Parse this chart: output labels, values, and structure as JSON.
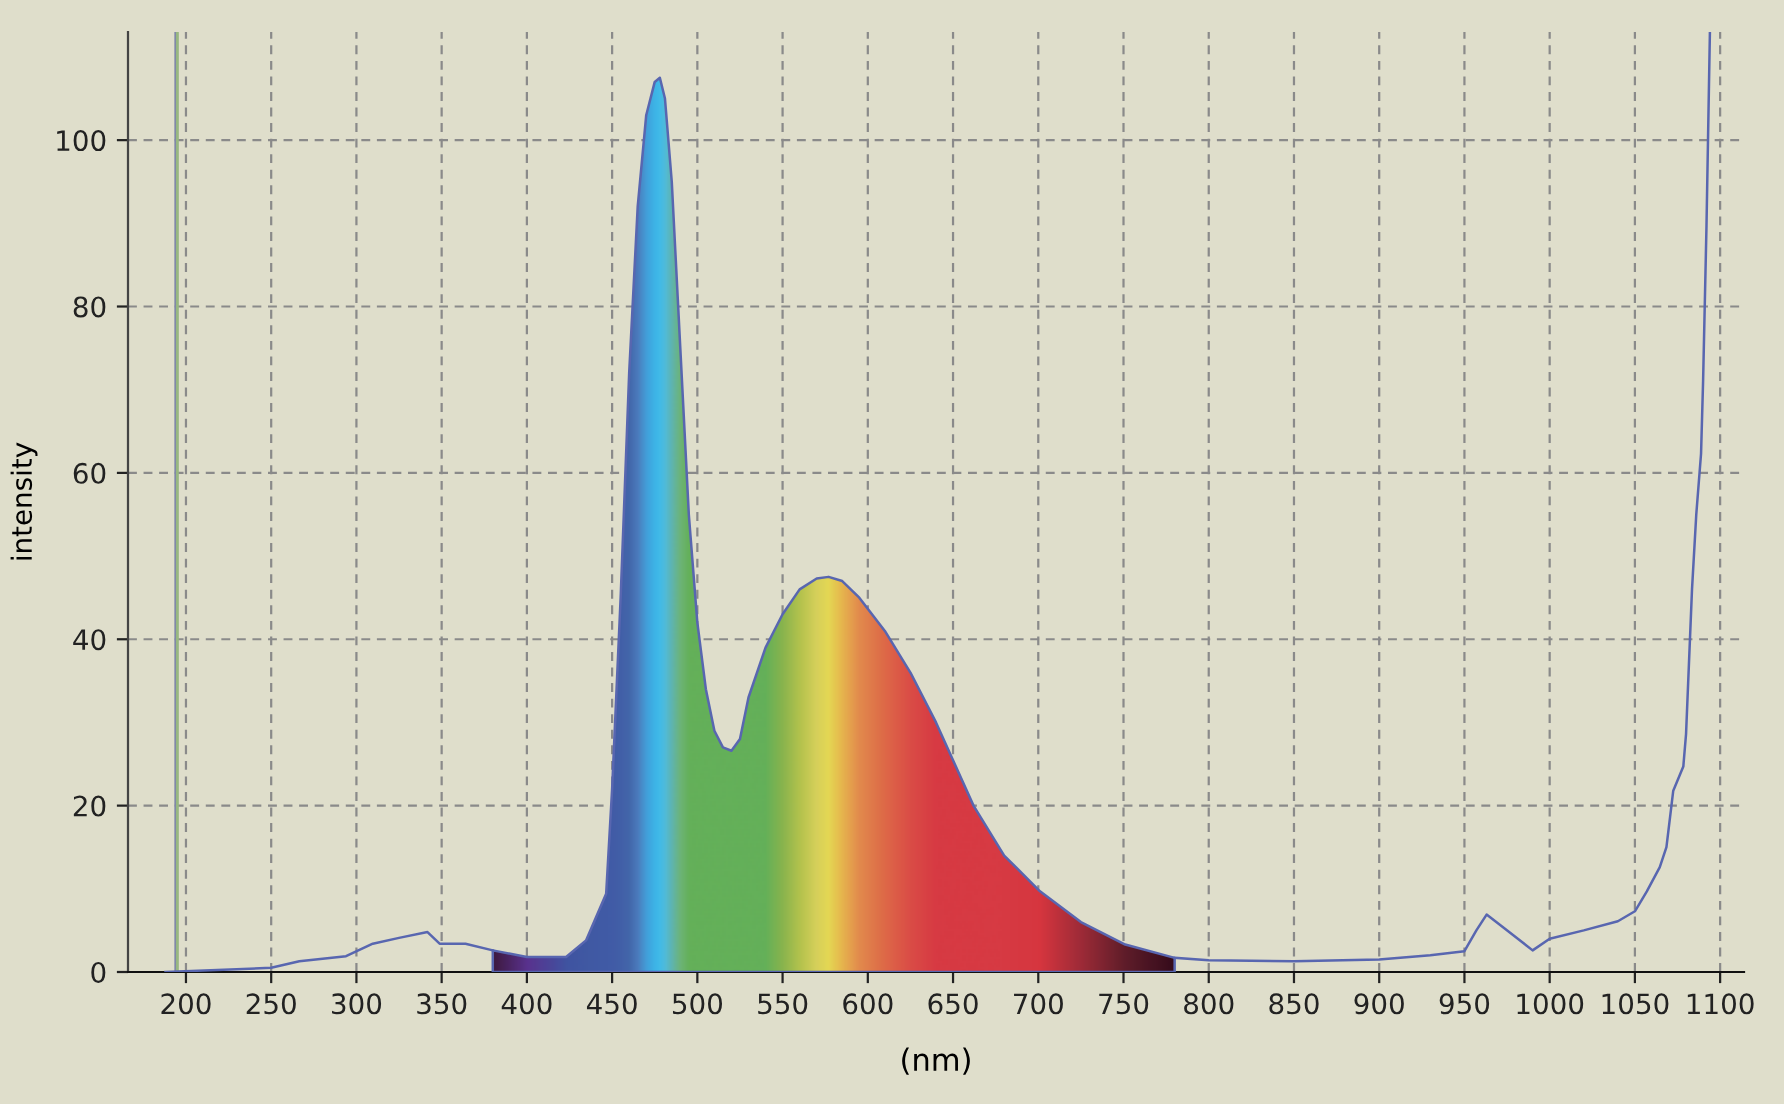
{
  "chart_data": {
    "type": "line",
    "xlabel": "(nm)",
    "ylabel": "intensity",
    "xlim": [
      166,
      1114
    ],
    "ylim": [
      0,
      113
    ],
    "xticks": [
      200,
      250,
      300,
      350,
      400,
      450,
      500,
      550,
      600,
      650,
      700,
      750,
      800,
      850,
      900,
      950,
      1000,
      1050,
      1100
    ],
    "yticks": [
      0,
      20,
      40,
      60,
      80,
      100
    ],
    "grid": true,
    "legend": false,
    "marker": "none",
    "line_style": "solid",
    "ref_lines": [
      {
        "axis": "x",
        "value": 194,
        "color": "#8088a8"
      },
      {
        "axis": "x",
        "value": 195,
        "color": "#98b880"
      }
    ],
    "series": [
      {
        "type": "area",
        "color": "#5866b0",
        "x": [
          380,
          400,
          423,
          434.7,
          446.5,
          450,
          455,
          460,
          465,
          470,
          475,
          478,
          481,
          485,
          490,
          495,
          500,
          505,
          510,
          515,
          520,
          525,
          530,
          540,
          550,
          560,
          570,
          577,
          585,
          595,
          610,
          625,
          640,
          662,
          680,
          701,
          725,
          751,
          780
        ],
        "values": [
          2.6,
          1.8,
          1.8,
          3.8,
          9.4,
          22,
          45,
          72,
          92,
          103,
          107,
          107.5,
          105,
          95,
          75,
          55,
          42,
          34,
          29,
          27,
          26.6,
          28,
          33,
          39,
          43,
          46,
          47.3,
          47.5,
          47,
          45,
          41,
          36,
          30,
          20,
          14,
          9.7,
          6,
          3.3,
          1.7
        ],
        "colors": [
          "#3a1030",
          "#5a2c8a",
          "#3d52a0",
          "#3d58a2",
          "#3e5aa5",
          "#3e5ca6",
          "#3f60a8",
          "#4068aa",
          "#4a80c0",
          "#40a8e0",
          "#38c0f0",
          "#40c8f0",
          "#50c8e0",
          "#60c0b0",
          "#70c070",
          "#66bb4e",
          "#66bb4e",
          "#66bb4e",
          "#66bb4e",
          "#66bb4e",
          "#66bb4e",
          "#66bb4e",
          "#66bb4e",
          "#66bb4e",
          "#90c040",
          "#c0d040",
          "#e8e050",
          "#f8e848",
          "#fac040",
          "#f59040",
          "#f06a3a",
          "#ec4a38",
          "#e93535",
          "#e93535",
          "#e93535",
          "#e83030",
          "#a82428",
          "#601418",
          "#300008"
        ]
      },
      {
        "color": "#5866b0",
        "x": [
          188,
          250,
          266.5,
          293.9,
          309.6,
          325,
          341.7,
          348.8,
          364,
          380,
          577,
          780,
          800,
          850,
          900,
          930,
          950,
          957,
          963,
          970,
          980,
          990,
          1000,
          1020,
          1040,
          1050,
          1057,
          1064.6,
          1068.5,
          1072.5,
          1078.4,
          1080,
          1083.5,
          1086,
          1088.8,
          1090,
          1092,
          1094
        ],
        "values": [
          0,
          0.5,
          1.3,
          1.9,
          3.4,
          4.1,
          4.8,
          3.4,
          3.4,
          2.6,
          null,
          1.7,
          1.4,
          1.3,
          1.5,
          2,
          2.5,
          5,
          6.9,
          5.8,
          4.2,
          2.6,
          4.0,
          5,
          6.1,
          7.3,
          9.7,
          12.6,
          15,
          21.8,
          24.7,
          28.6,
          46,
          55,
          62.3,
          71,
          89.7,
          113
        ]
      }
    ]
  }
}
